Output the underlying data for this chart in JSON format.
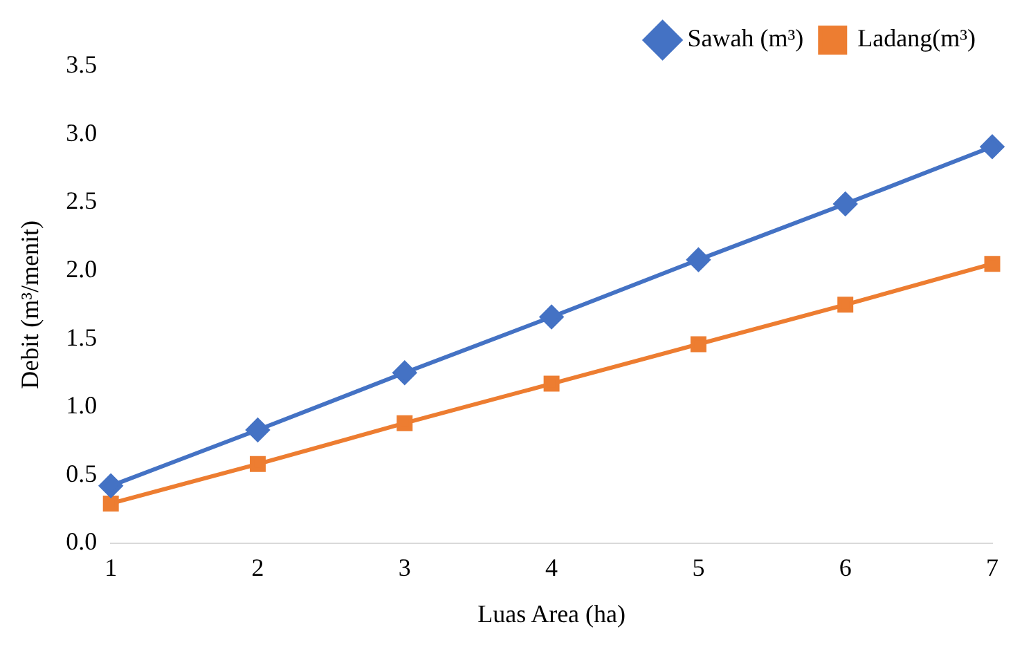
{
  "chart_data": {
    "type": "line",
    "xlabel": "Luas Area (ha)",
    "ylabel": "Debit (m³/menit)",
    "categories": [
      "1",
      "2",
      "3",
      "4",
      "5",
      "6",
      "7"
    ],
    "series": [
      {
        "name": "Sawah (m³)",
        "color": "#4472c4",
        "marker": "diamond",
        "values": [
          0.42,
          0.83,
          1.25,
          1.66,
          2.08,
          2.49,
          2.91
        ]
      },
      {
        "name": "Ladang(m³)",
        "color": "#ed7d31",
        "marker": "square",
        "values": [
          0.29,
          0.58,
          0.88,
          1.17,
          1.46,
          1.75,
          2.05
        ]
      }
    ],
    "ylim": [
      0,
      3.5
    ],
    "yticks": [
      {
        "value": 0,
        "label": "0.0"
      },
      {
        "value": 0.5,
        "label": "0.5"
      },
      {
        "value": 1,
        "label": "1.0"
      },
      {
        "value": 1.5,
        "label": "1.5"
      },
      {
        "value": 2,
        "label": "2.0"
      },
      {
        "value": 2.5,
        "label": "2.5"
      },
      {
        "value": 3,
        "label": "3.0"
      },
      {
        "value": 3.5,
        "label": "3.5"
      }
    ],
    "grid": false,
    "legend": "top right",
    "line_style": "solid"
  }
}
